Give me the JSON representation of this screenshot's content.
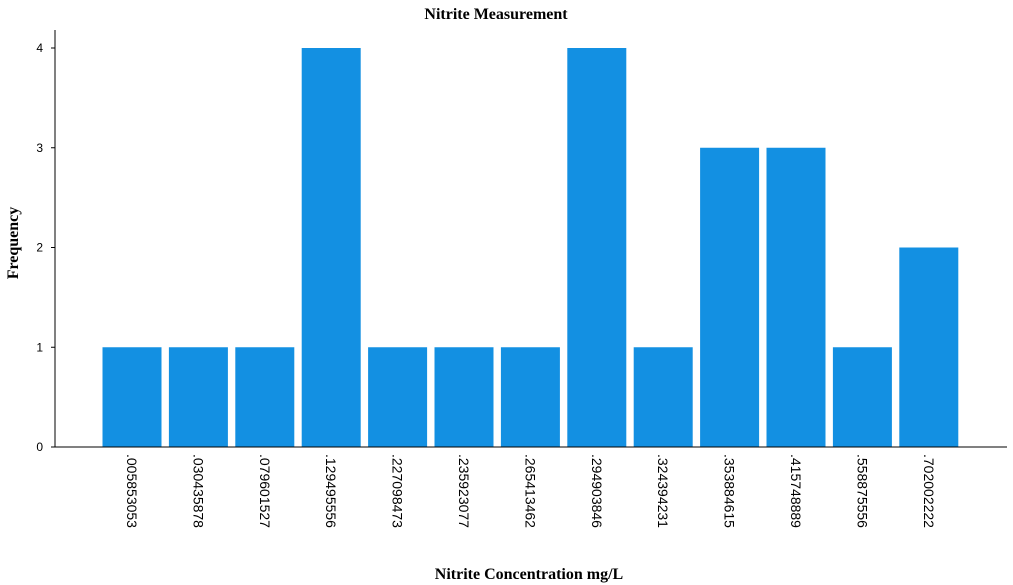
{
  "chart_data": {
    "type": "bar",
    "title": "Nitrite Measurement",
    "xlabel": "Nitrite Concentration mg/L",
    "ylabel": "Frequency",
    "categories": [
      ".005853053",
      ".030435878",
      ".079601527",
      ".129495556",
      ".227098473",
      ".235923077",
      ".265413462",
      ".294903846",
      ".324394231",
      ".353884615",
      ".415748889",
      ".558875556",
      ".702002222"
    ],
    "values": [
      1,
      1,
      1,
      4,
      1,
      1,
      1,
      4,
      1,
      3,
      3,
      1,
      2
    ],
    "yticks": [
      "0",
      "1",
      "2",
      "3",
      "4"
    ],
    "ylim": [
      0,
      4
    ],
    "grid": false,
    "bar_color": "#1390e2"
  }
}
